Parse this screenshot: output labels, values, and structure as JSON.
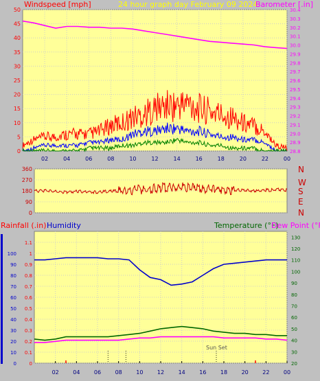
{
  "header": {
    "left_title": "Windspeed [mph]",
    "center_title": "24 hour graph day   February 09 2024",
    "right_title": "Barometer [.in]"
  },
  "middle": {
    "direction_labels": [
      "N",
      "W",
      "S",
      "E",
      "N"
    ]
  },
  "bottom": {
    "left_title_rain": "Rainfall (.in)",
    "left_title_humidity": "Humidity",
    "right_title_temp": "Temperature (°F)",
    "right_title_dew": "Dew Point (°F)",
    "annotation": "Sun Set"
  },
  "colors": {
    "panel_bg": "#ffff99",
    "frame": "#c0c0c0",
    "wind_speed": "#ff0000",
    "wind_gust": "#0000ff",
    "wind_avg": "#008000",
    "barometer": "#ff00ff",
    "direction": "#cc0000",
    "humidity": "#0000cc",
    "temperature": "#006600",
    "dew_point": "#ff00ff",
    "rain": "#ff0000"
  },
  "chart_data": [
    {
      "type": "line",
      "id": "wind-barometer",
      "title": "24 hour graph day   February 09 2024",
      "xlabel": "",
      "ylabel": "Windspeed [mph]",
      "y2label": "Barometer [.in]",
      "x_ticks": [
        "02",
        "04",
        "06",
        "08",
        "10",
        "12",
        "14",
        "16",
        "18",
        "20",
        "22",
        "00"
      ],
      "ylim": [
        0,
        50
      ],
      "y_ticks": [
        0,
        5,
        10,
        15,
        20,
        25,
        30,
        35,
        40,
        45,
        50
      ],
      "y2lim": [
        28.8,
        30.4
      ],
      "y2_ticks": [
        28.8,
        28.9,
        29.0,
        29.1,
        29.2,
        29.3,
        29.4,
        29.5,
        29.6,
        29.7,
        29.8,
        29.9,
        30.0,
        30.1,
        30.2,
        30.3,
        30.4
      ],
      "grid": true,
      "series": [
        {
          "name": "Barometer",
          "axis": "right",
          "x": [
            0,
            1,
            2,
            3,
            4,
            5,
            6,
            7,
            8,
            9,
            10,
            11,
            12,
            13,
            14,
            15,
            16,
            17,
            18,
            19,
            20,
            21,
            22,
            23,
            24
          ],
          "values": [
            30.27,
            30.25,
            30.22,
            30.19,
            30.21,
            30.21,
            30.2,
            30.2,
            30.19,
            30.19,
            30.18,
            30.16,
            30.14,
            30.12,
            30.1,
            30.08,
            30.06,
            30.04,
            30.03,
            30.02,
            30.01,
            30.0,
            29.98,
            29.97,
            29.96
          ]
        },
        {
          "name": "Wind gust",
          "x": [
            0,
            1,
            2,
            3,
            4,
            5,
            6,
            7,
            8,
            9,
            10,
            11,
            12,
            13,
            14,
            15,
            16,
            17,
            18,
            19,
            20,
            21,
            22,
            23,
            24
          ],
          "values": [
            2,
            4,
            5,
            5,
            6,
            6,
            6,
            7,
            9,
            10,
            12,
            13,
            15,
            16,
            16,
            17,
            15,
            14,
            13,
            12,
            10,
            9,
            7,
            2,
            1
          ]
        },
        {
          "name": "Wind speed",
          "x": [
            0,
            1,
            2,
            3,
            4,
            5,
            6,
            7,
            8,
            9,
            10,
            11,
            12,
            13,
            14,
            15,
            16,
            17,
            18,
            19,
            20,
            21,
            22,
            23,
            24
          ],
          "values": [
            0,
            1,
            2,
            2,
            2,
            2,
            3,
            3,
            4,
            4,
            6,
            7,
            7,
            8,
            8,
            7,
            7,
            6,
            5,
            5,
            4,
            4,
            3,
            0,
            0
          ]
        },
        {
          "name": "Wind average",
          "x": [
            0,
            1,
            2,
            3,
            4,
            5,
            6,
            7,
            8,
            9,
            10,
            11,
            12,
            13,
            14,
            15,
            16,
            17,
            18,
            19,
            20,
            21,
            22,
            23,
            24
          ],
          "values": [
            0,
            0,
            0,
            0,
            0,
            0,
            1,
            1,
            1,
            2,
            2,
            3,
            3,
            3,
            4,
            3,
            3,
            2,
            2,
            1,
            1,
            1,
            0,
            0,
            0
          ]
        }
      ]
    },
    {
      "type": "line",
      "id": "wind-direction",
      "title": "",
      "xlabel": "",
      "ylabel": "",
      "ylim": [
        0,
        360
      ],
      "y_ticks": [
        0,
        90,
        180,
        270,
        360
      ],
      "grid": true,
      "series": [
        {
          "name": "Wind direction",
          "x": [
            0,
            1,
            2,
            3,
            4,
            5,
            6,
            7,
            8,
            9,
            10,
            11,
            12,
            13,
            14,
            15,
            16,
            17,
            18,
            19,
            20,
            21,
            22,
            23,
            24
          ],
          "values": [
            180,
            180,
            175,
            170,
            175,
            175,
            170,
            175,
            180,
            185,
            190,
            195,
            205,
            210,
            210,
            205,
            200,
            195,
            190,
            185,
            185,
            180,
            185,
            190,
            185
          ]
        }
      ]
    },
    {
      "type": "line",
      "id": "humidity-temperature",
      "title": "",
      "xlabel": "",
      "ylabel": "Rainfall (.in)",
      "ylim": [
        0,
        1.2
      ],
      "y_ticks": [
        0,
        0.1,
        0.2,
        0.3,
        0.4,
        0.5,
        0.6,
        0.7,
        0.8,
        0.9,
        1.0,
        1.1
      ],
      "humidity_ticks": [
        0,
        10,
        20,
        30,
        40,
        50,
        60,
        70,
        80,
        90,
        100
      ],
      "y2lim": [
        20,
        135
      ],
      "y2_ticks": [
        20,
        30,
        40,
        50,
        60,
        70,
        80,
        90,
        100,
        110,
        120,
        130
      ],
      "x_ticks": [
        "02",
        "04",
        "06",
        "08",
        "10",
        "12",
        "14",
        "16",
        "18",
        "20",
        "22",
        "00"
      ],
      "grid": true,
      "series": [
        {
          "name": "Humidity",
          "axis": "humidity",
          "x": [
            0,
            1,
            2,
            3,
            4,
            5,
            6,
            7,
            8,
            9,
            10,
            11,
            12,
            13,
            14,
            15,
            16,
            17,
            18,
            19,
            20,
            21,
            22,
            23,
            24
          ],
          "values": [
            94,
            94,
            95,
            96,
            96,
            96,
            96,
            95,
            95,
            94,
            85,
            78,
            76,
            71,
            72,
            74,
            80,
            86,
            90,
            91,
            92,
            93,
            94,
            94,
            94
          ]
        },
        {
          "name": "Temperature",
          "axis": "right",
          "x": [
            0,
            1,
            2,
            3,
            4,
            5,
            6,
            7,
            8,
            9,
            10,
            11,
            12,
            13,
            14,
            15,
            16,
            17,
            18,
            19,
            20,
            21,
            22,
            23,
            24
          ],
          "values": [
            41,
            40,
            41,
            43,
            43,
            43,
            43,
            43,
            44,
            45,
            46,
            48,
            50,
            51,
            52,
            51,
            50,
            48,
            47,
            46,
            46,
            45,
            45,
            44,
            44
          ]
        },
        {
          "name": "Dew Point",
          "axis": "right",
          "x": [
            0,
            1,
            2,
            3,
            4,
            5,
            6,
            7,
            8,
            9,
            10,
            11,
            12,
            13,
            14,
            15,
            16,
            17,
            18,
            19,
            20,
            21,
            22,
            23,
            24
          ],
          "values": [
            38,
            38,
            39,
            40,
            40,
            40,
            40,
            40,
            40,
            41,
            42,
            42,
            43,
            43,
            43,
            43,
            43,
            43,
            42,
            42,
            42,
            42,
            41,
            41,
            40
          ]
        }
      ]
    }
  ]
}
